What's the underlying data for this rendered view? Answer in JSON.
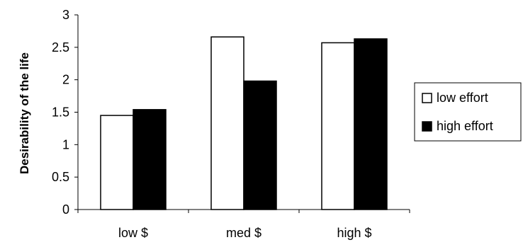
{
  "chart_data": {
    "type": "bar",
    "categories": [
      "low $",
      "med $",
      "high $"
    ],
    "series": [
      {
        "name": "low effort",
        "values": [
          1.45,
          2.66,
          2.57
        ],
        "fill": "#ffffff",
        "stroke": "#000000"
      },
      {
        "name": "high effort",
        "values": [
          1.54,
          1.98,
          2.63
        ],
        "fill": "#000000",
        "stroke": "#000000"
      }
    ],
    "xlabel": "",
    "ylabel": "Desirability of the life",
    "ylim": [
      0,
      3
    ],
    "yticks": [
      0,
      0.5,
      1,
      1.5,
      2,
      2.5,
      3
    ],
    "ytick_labels": [
      "0",
      "0.5",
      "1",
      "1.5",
      "2",
      "2.5",
      "3"
    ],
    "grid": false,
    "legend": {
      "placement": "right",
      "boxed": true
    }
  }
}
